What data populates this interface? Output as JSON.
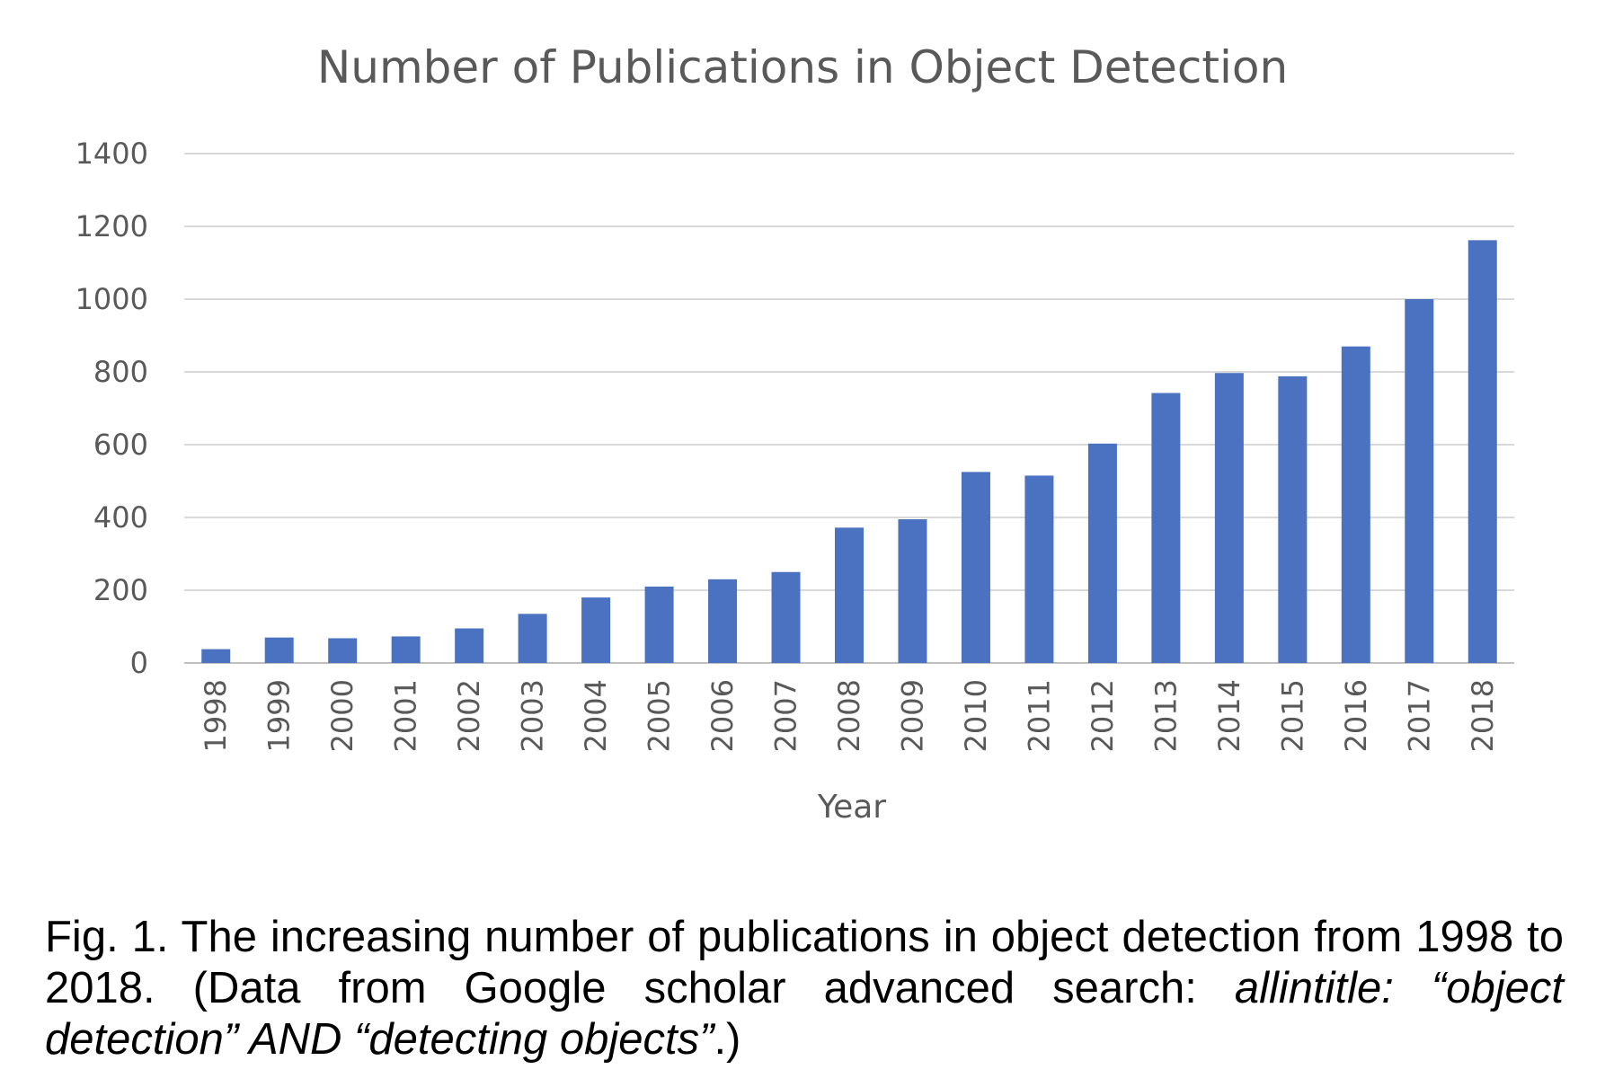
{
  "chart_data": {
    "type": "bar",
    "title": "Number of Publications in Object Detection",
    "xlabel": "Year",
    "ylabel": "",
    "categories": [
      "1998",
      "1999",
      "2000",
      "2001",
      "2002",
      "2003",
      "2004",
      "2005",
      "2006",
      "2007",
      "2008",
      "2009",
      "2010",
      "2011",
      "2012",
      "2013",
      "2014",
      "2015",
      "2016",
      "2017",
      "2018"
    ],
    "values": [
      38,
      70,
      68,
      73,
      95,
      135,
      180,
      210,
      230,
      250,
      372,
      395,
      525,
      515,
      603,
      742,
      797,
      788,
      870,
      1000,
      1162
    ],
    "ylim": [
      0,
      1400
    ],
    "yticks": [
      "0",
      "200",
      "400",
      "600",
      "800",
      "1000",
      "1200",
      "1400"
    ],
    "grid": true,
    "colors": {
      "bar": "#4a72c1",
      "grid": "#d9d9d9",
      "text": "#595959"
    }
  },
  "caption": {
    "prefix": "Fig. 1. The increasing number of publications in object detection from 1998 to 2018. (Data from Google scholar advanced search: ",
    "italic": "allintitle: “object detection” AND “detecting objects”",
    "suffix": ".)"
  }
}
